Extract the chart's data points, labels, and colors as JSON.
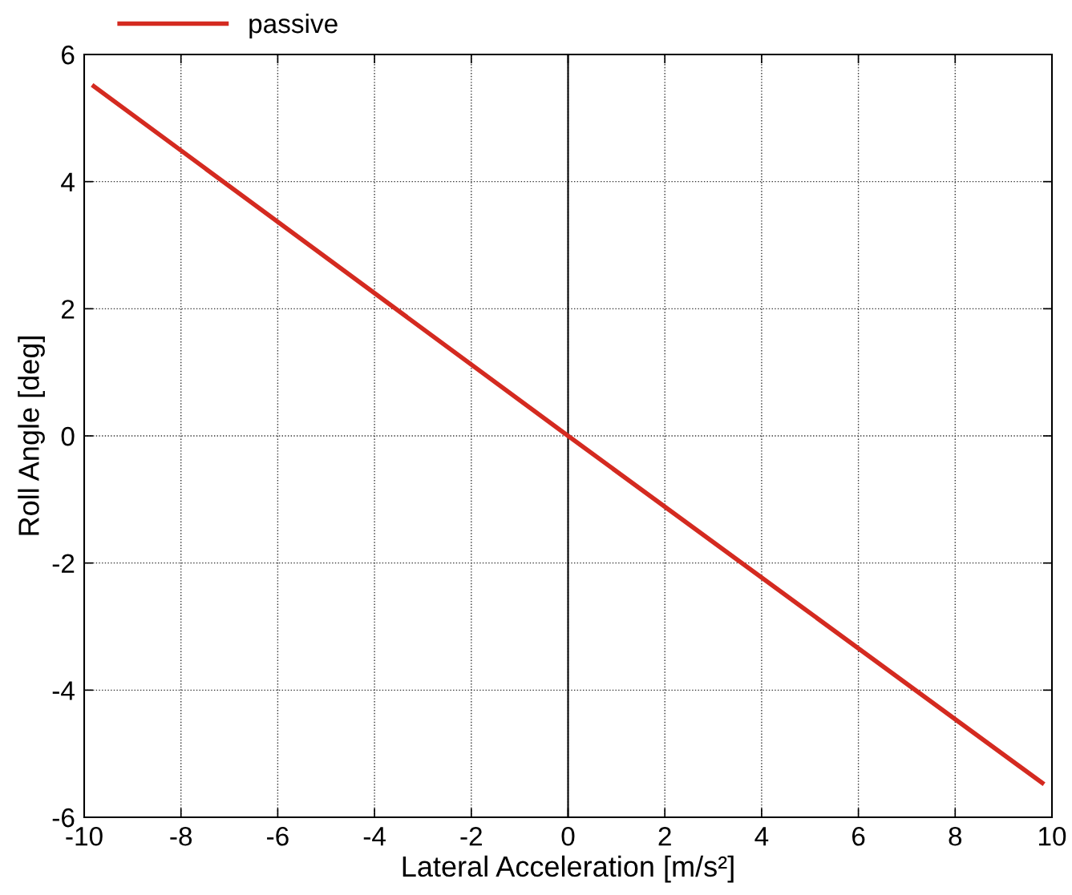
{
  "chart_data": {
    "type": "line",
    "xlabel": "Lateral Acceleration [m/s²]",
    "ylabel": "Roll Angle [deg]",
    "series": [
      {
        "name": "passive",
        "color": "#d42a20",
        "x": [
          -9.8,
          0,
          9.8
        ],
        "values": [
          5.5,
          0,
          -5.46
        ]
      }
    ],
    "xlim": [
      -10,
      10
    ],
    "xticks": [
      -10,
      -8,
      -6,
      -4,
      -2,
      0,
      2,
      4,
      6,
      8,
      10
    ],
    "ylim": [
      -6,
      6
    ],
    "yticks": [
      -6,
      -4,
      -2,
      0,
      2,
      4,
      6
    ],
    "ref_lines": [
      {
        "axis": "x",
        "value": 0,
        "color": "#000000",
        "line_style": "solid"
      }
    ],
    "grid": true,
    "legend": "top left",
    "marker": "none",
    "line_style": "solid"
  }
}
